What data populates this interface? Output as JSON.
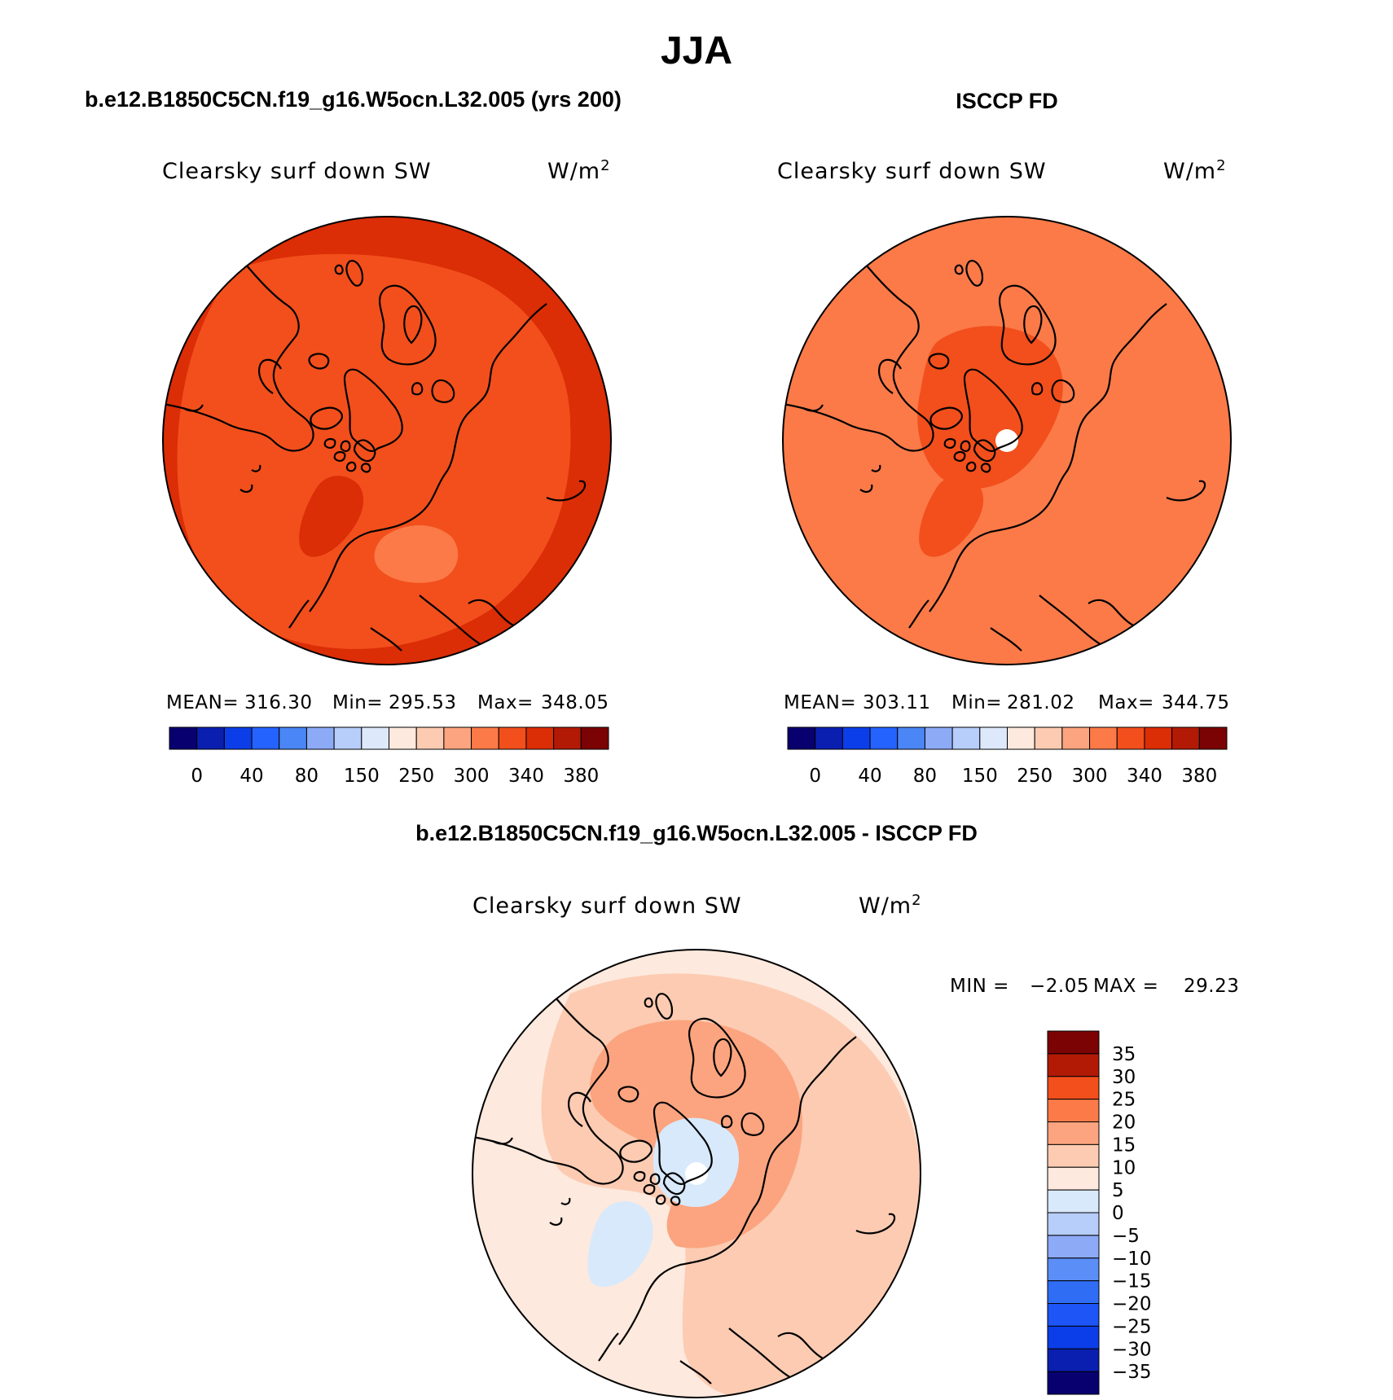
{
  "figure": {
    "title": "JJA",
    "panel_left_title": "b.e12.B1850C5CN.f19_g16.W5ocn.L32.005 (yrs 200)",
    "panel_right_title": "ISCCP FD",
    "panel_diff_title": "b.e12.B1850C5CN.f19_g16.W5ocn.L32.005 - ISCCP FD"
  },
  "chart_data": [
    {
      "type": "heatmap",
      "projection": "north-polar-stereographic",
      "variable": "Clearsky surf down SW",
      "units": "W/m",
      "units_sup": "2",
      "stats": {
        "mean_label": "MEAN=",
        "mean": "316.30",
        "min_label": "Min=",
        "min": "295.53",
        "max_label": "Max=",
        "max": "348.05"
      },
      "levels": [
        0,
        20,
        40,
        60,
        80,
        100,
        150,
        200,
        250,
        280,
        300,
        320,
        340,
        360,
        380
      ],
      "tick_labels": [
        "0",
        "40",
        "80",
        "150",
        "250",
        "300",
        "340",
        "380"
      ],
      "colors": [
        "#08006f",
        "#0a1fb0",
        "#0b3ee8",
        "#2563ff",
        "#4a86f5",
        "#8daaf7",
        "#b7cdfa",
        "#dde8fb",
        "#fde9dd",
        "#fccbb2",
        "#fba47f",
        "#fb7a48",
        "#f24f1c",
        "#db2d06",
        "#b21a06",
        "#7b0303"
      ],
      "fields": {
        "ocean": 320,
        "polar": 337,
        "greenland_interior": 345,
        "scandinavia": 303,
        "land_default": 310
      }
    },
    {
      "type": "heatmap",
      "projection": "north-polar-stereographic",
      "variable": "Clearsky surf down SW",
      "units": "W/m",
      "units_sup": "2",
      "stats": {
        "mean_label": "MEAN=",
        "mean": "303.11",
        "min_label": "Min=",
        "min": "281.02",
        "max_label": "Max=",
        "max": "344.75"
      },
      "levels": [
        0,
        20,
        40,
        60,
        80,
        100,
        150,
        200,
        250,
        280,
        300,
        320,
        340,
        360,
        380
      ],
      "tick_labels": [
        "0",
        "40",
        "80",
        "150",
        "250",
        "300",
        "340",
        "380"
      ],
      "colors": [
        "#08006f",
        "#0a1fb0",
        "#0b3ee8",
        "#2563ff",
        "#4a86f5",
        "#8daaf7",
        "#b7cdfa",
        "#dde8fb",
        "#fde9dd",
        "#fccbb2",
        "#fba47f",
        "#fb7a48",
        "#f24f1c",
        "#db2d06",
        "#b21a06",
        "#7b0303"
      ],
      "fields": {
        "ocean": 310,
        "polar": 320,
        "greenland_interior": 338,
        "eurasia": 300,
        "land_default": 305
      },
      "missing_pole": true
    },
    {
      "type": "heatmap",
      "projection": "north-polar-stereographic",
      "variable": "Clearsky surf down SW",
      "units": "W/m",
      "units_sup": "2",
      "minmax": {
        "min_label": "MIN =",
        "min": "−2.05",
        "max_label": "MAX =",
        "max": "29.23"
      },
      "levels": [
        -35,
        -30,
        -25,
        -20,
        -15,
        -10,
        -5,
        0,
        5,
        10,
        15,
        20,
        25,
        30,
        35
      ],
      "tick_labels": [
        "35",
        "30",
        "25",
        "20",
        "15",
        "10",
        "5",
        "0",
        "−5",
        "−10",
        "−15",
        "−20",
        "−25",
        "−30",
        "−35"
      ],
      "colors": [
        "#08006f",
        "#0a1fb0",
        "#0b3ee8",
        "#1d55f7",
        "#2f6df5",
        "#5b8ef6",
        "#8daaf7",
        "#b7cdfa",
        "#d8e9fb",
        "#fde9dd",
        "#fccbb2",
        "#fba47f",
        "#fb7a48",
        "#f24f1c",
        "#b21a06",
        "#7b0303"
      ],
      "fields": {
        "outer": 5,
        "middle": 12,
        "polar": 3,
        "arctic_ring": 17,
        "greenland": 2
      },
      "missing_pole": true
    }
  ]
}
